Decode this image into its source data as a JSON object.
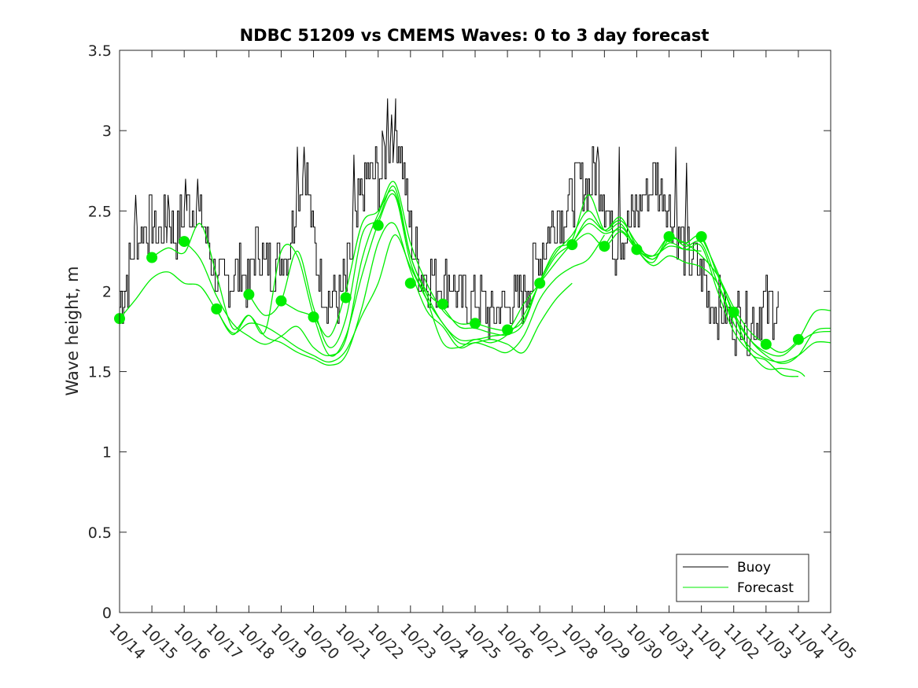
{
  "chart_data": {
    "type": "line",
    "title": "NDBC 51209 vs CMEMS Waves: 0 to 3 day forecast",
    "xlabel": "",
    "ylabel": "Wave height, m",
    "ylim": [
      0,
      3.5
    ],
    "yticks": [
      0,
      0.5,
      1,
      1.5,
      2,
      2.5,
      3,
      3.5
    ],
    "yticklabels": [
      "0",
      "0.5",
      "1",
      "1.5",
      "2",
      "2.5",
      "3",
      "3.5"
    ],
    "xlim_days": [
      0,
      22
    ],
    "xticklabels": [
      "10/14",
      "10/15",
      "10/16",
      "10/17",
      "10/18",
      "10/19",
      "10/20",
      "10/21",
      "10/22",
      "10/23",
      "10/24",
      "10/25",
      "10/26",
      "10/27",
      "10/28",
      "10/29",
      "10/30",
      "10/31",
      "11/01",
      "11/02",
      "11/03",
      "11/04",
      "11/05"
    ],
    "legend": {
      "position": "bottom-right",
      "entries": [
        "Buoy",
        "Forecast"
      ]
    },
    "colors": {
      "buoy": "#000000",
      "forecast": "#00ee00",
      "axis": "#262626"
    },
    "buoy_anchors": [
      [
        0,
        1.9
      ],
      [
        0.25,
        2.1
      ],
      [
        0.5,
        2.3
      ],
      [
        0.75,
        2.4
      ],
      [
        1,
        2.4
      ],
      [
        1.25,
        2.35
      ],
      [
        1.5,
        2.45
      ],
      [
        1.75,
        2.35
      ],
      [
        2,
        2.5
      ],
      [
        2.25,
        2.55
      ],
      [
        2.5,
        2.45
      ],
      [
        2.75,
        2.3
      ],
      [
        3,
        2.05
      ],
      [
        3.25,
        2.05
      ],
      [
        3.5,
        2.1
      ],
      [
        3.75,
        2.15
      ],
      [
        4,
        2.05
      ],
      [
        4.25,
        2.3
      ],
      [
        4.5,
        2.15
      ],
      [
        4.75,
        2.15
      ],
      [
        5,
        2.2
      ],
      [
        5.25,
        2.3
      ],
      [
        5.5,
        2.6
      ],
      [
        5.75,
        2.8
      ],
      [
        6,
        2.3
      ],
      [
        6.25,
        2.05
      ],
      [
        6.5,
        1.95
      ],
      [
        6.75,
        1.95
      ],
      [
        7,
        2.05
      ],
      [
        7.25,
        2.35
      ],
      [
        7.5,
        2.6
      ],
      [
        7.75,
        2.75
      ],
      [
        8,
        2.7
      ],
      [
        8.25,
        2.85
      ],
      [
        8.5,
        3.0
      ],
      [
        8.75,
        2.8
      ],
      [
        9,
        2.35
      ],
      [
        9.25,
        2.15
      ],
      [
        9.5,
        2.1
      ],
      [
        9.75,
        2.05
      ],
      [
        10,
        2.05
      ],
      [
        10.25,
        2.1
      ],
      [
        10.5,
        1.95
      ],
      [
        10.75,
        1.95
      ],
      [
        11,
        1.95
      ],
      [
        11.25,
        1.9
      ],
      [
        11.5,
        1.85
      ],
      [
        11.75,
        1.9
      ],
      [
        12,
        1.9
      ],
      [
        12.25,
        1.95
      ],
      [
        12.5,
        2.0
      ],
      [
        12.75,
        2.1
      ],
      [
        13,
        2.25
      ],
      [
        13.25,
        2.35
      ],
      [
        13.5,
        2.45
      ],
      [
        13.75,
        2.5
      ],
      [
        14,
        2.6
      ],
      [
        14.25,
        2.7
      ],
      [
        14.5,
        2.65
      ],
      [
        14.75,
        2.75
      ],
      [
        15,
        2.6
      ],
      [
        15.25,
        2.3
      ],
      [
        15.5,
        2.3
      ],
      [
        15.75,
        2.4
      ],
      [
        16,
        2.5
      ],
      [
        16.25,
        2.6
      ],
      [
        16.5,
        2.7
      ],
      [
        16.75,
        2.65
      ],
      [
        17,
        2.5
      ],
      [
        17.25,
        2.35
      ],
      [
        17.5,
        2.25
      ],
      [
        17.75,
        2.2
      ],
      [
        18,
        2.1
      ],
      [
        18.25,
        1.95
      ],
      [
        18.5,
        1.9
      ],
      [
        18.75,
        1.85
      ],
      [
        19,
        1.8
      ],
      [
        19.25,
        1.85
      ],
      [
        19.5,
        1.8
      ],
      [
        19.75,
        1.85
      ],
      [
        20,
        1.9
      ]
    ],
    "buoy_peaks": [
      [
        0.5,
        2.6
      ],
      [
        1.5,
        2.6
      ],
      [
        2.05,
        2.7
      ],
      [
        2.4,
        2.7
      ],
      [
        5.5,
        2.9
      ],
      [
        5.7,
        2.9
      ],
      [
        7.25,
        2.85
      ],
      [
        8.15,
        2.95
      ],
      [
        8.3,
        3.2
      ],
      [
        8.4,
        3.1
      ],
      [
        8.5,
        2.95
      ],
      [
        14.8,
        2.9
      ],
      [
        15.45,
        2.9
      ],
      [
        17.2,
        2.9
      ],
      [
        17.55,
        2.8
      ]
    ],
    "buoy_end_day": 20.4,
    "forecast_points": [
      [
        0,
        1.83
      ],
      [
        1,
        2.21
      ],
      [
        2,
        2.31
      ],
      [
        3,
        1.89
      ],
      [
        4,
        1.98
      ],
      [
        5,
        1.94
      ],
      [
        6,
        1.84
      ],
      [
        7,
        1.96
      ],
      [
        8,
        2.41
      ],
      [
        9,
        2.05
      ],
      [
        10,
        1.92
      ],
      [
        11,
        1.8
      ],
      [
        12,
        1.76
      ],
      [
        13,
        2.05
      ],
      [
        14,
        2.29
      ],
      [
        15,
        2.28
      ],
      [
        16,
        2.26
      ],
      [
        17,
        2.34
      ],
      [
        18,
        2.34
      ],
      [
        19,
        1.87
      ],
      [
        20,
        1.67
      ],
      [
        21,
        1.7
      ]
    ],
    "forecast_series": [
      [
        [
          0,
          1.83
        ],
        [
          0.5,
          1.95
        ],
        [
          1,
          2.08
        ],
        [
          1.5,
          2.12
        ],
        [
          2,
          2.05
        ],
        [
          2.5,
          2.03
        ],
        [
          3,
          1.88
        ],
        [
          3.5,
          1.74
        ],
        [
          4,
          1.8
        ],
        [
          4.5,
          1.78
        ],
        [
          5,
          1.72
        ],
        [
          5.5,
          1.65
        ],
        [
          6,
          1.6
        ],
        [
          6.5,
          1.56
        ],
        [
          7,
          1.63
        ],
        [
          7.5,
          1.85
        ],
        [
          8,
          2.05
        ],
        [
          8.5,
          2.35
        ],
        [
          9,
          2.15
        ],
        [
          9.5,
          1.95
        ],
        [
          10,
          1.8
        ],
        [
          10.5,
          1.68
        ],
        [
          11,
          1.68
        ],
        [
          11.5,
          1.7
        ],
        [
          12,
          1.67
        ],
        [
          12.5,
          1.62
        ],
        [
          13,
          1.8
        ],
        [
          13.5,
          1.95
        ],
        [
          14,
          2.05
        ]
      ],
      [
        [
          1,
          2.21
        ],
        [
          1.5,
          2.27
        ],
        [
          2,
          2.24
        ],
        [
          2.5,
          2.42
        ],
        [
          3,
          2.1
        ],
        [
          3.5,
          1.77
        ],
        [
          4,
          1.85
        ],
        [
          4.5,
          1.72
        ],
        [
          5,
          1.68
        ],
        [
          5.5,
          1.62
        ],
        [
          6,
          1.58
        ],
        [
          6.5,
          1.54
        ],
        [
          7,
          1.6
        ],
        [
          7.5,
          1.9
        ],
        [
          8,
          2.3
        ],
        [
          8.5,
          2.42
        ],
        [
          9,
          2.13
        ],
        [
          9.5,
          1.88
        ],
        [
          10,
          1.78
        ],
        [
          10.5,
          1.65
        ],
        [
          11,
          1.68
        ],
        [
          11.5,
          1.65
        ],
        [
          12,
          1.62
        ],
        [
          12.5,
          1.72
        ],
        [
          13,
          1.95
        ],
        [
          13.5,
          2.08
        ],
        [
          14,
          2.15
        ],
        [
          14.5,
          2.2
        ],
        [
          15,
          2.35
        ]
      ],
      [
        [
          2,
          2.31
        ],
        [
          2.5,
          2.2
        ],
        [
          3,
          1.97
        ],
        [
          3.5,
          1.8
        ],
        [
          4,
          1.72
        ],
        [
          4.5,
          1.67
        ],
        [
          5,
          1.72
        ],
        [
          5.5,
          1.78
        ],
        [
          6,
          1.65
        ],
        [
          6.5,
          1.6
        ],
        [
          7,
          1.7
        ],
        [
          7.5,
          2.2
        ],
        [
          8,
          2.48
        ],
        [
          8.5,
          2.62
        ],
        [
          9,
          2.22
        ],
        [
          9.5,
          1.98
        ],
        [
          10,
          1.8
        ],
        [
          10.5,
          1.7
        ],
        [
          11,
          1.7
        ],
        [
          11.5,
          1.72
        ],
        [
          12,
          1.75
        ],
        [
          12.5,
          1.92
        ],
        [
          13,
          2.05
        ],
        [
          13.5,
          2.18
        ],
        [
          14,
          2.3
        ],
        [
          14.5,
          2.42
        ],
        [
          15,
          2.36
        ],
        [
          15.5,
          2.38
        ],
        [
          16,
          2.28
        ]
      ],
      [
        [
          3,
          1.89
        ],
        [
          3.5,
          1.73
        ],
        [
          4,
          1.85
        ],
        [
          4.5,
          1.75
        ],
        [
          5,
          2.25
        ],
        [
          5.5,
          2.22
        ],
        [
          6,
          1.85
        ],
        [
          6.5,
          1.6
        ],
        [
          7,
          1.72
        ],
        [
          7.5,
          2.1
        ],
        [
          8,
          2.42
        ],
        [
          8.5,
          2.6
        ],
        [
          9,
          2.18
        ],
        [
          9.5,
          1.95
        ],
        [
          10,
          1.68
        ],
        [
          10.5,
          1.65
        ],
        [
          11,
          1.7
        ],
        [
          11.5,
          1.68
        ],
        [
          12,
          1.73
        ],
        [
          12.5,
          1.85
        ],
        [
          13,
          2.05
        ],
        [
          13.5,
          2.22
        ],
        [
          14,
          2.3
        ],
        [
          14.5,
          2.45
        ],
        [
          15,
          2.38
        ],
        [
          15.5,
          2.44
        ],
        [
          16,
          2.3
        ],
        [
          16.5,
          2.2
        ],
        [
          17,
          2.33
        ]
      ],
      [
        [
          4,
          1.98
        ],
        [
          4.5,
          1.85
        ],
        [
          5,
          1.94
        ],
        [
          5.5,
          2.25
        ],
        [
          6,
          1.9
        ],
        [
          6.5,
          1.65
        ],
        [
          7,
          1.83
        ],
        [
          7.5,
          2.35
        ],
        [
          8,
          2.45
        ],
        [
          8.5,
          2.65
        ],
        [
          9,
          2.22
        ],
        [
          9.5,
          2.0
        ],
        [
          10,
          1.9
        ],
        [
          10.5,
          1.78
        ],
        [
          11,
          1.77
        ],
        [
          11.5,
          1.74
        ],
        [
          12,
          1.73
        ],
        [
          12.5,
          1.8
        ],
        [
          13,
          2.06
        ],
        [
          13.5,
          2.24
        ],
        [
          14,
          2.35
        ],
        [
          14.5,
          2.5
        ],
        [
          15,
          2.38
        ],
        [
          15.5,
          2.46
        ],
        [
          16,
          2.28
        ],
        [
          16.5,
          2.22
        ],
        [
          17,
          2.28
        ],
        [
          17.5,
          2.26
        ],
        [
          18,
          2.25
        ]
      ],
      [
        [
          5,
          1.94
        ],
        [
          5.5,
          1.88
        ],
        [
          6,
          1.84
        ],
        [
          6.5,
          1.72
        ],
        [
          7,
          2.0
        ],
        [
          7.5,
          2.42
        ],
        [
          8,
          2.5
        ],
        [
          8.5,
          2.68
        ],
        [
          9,
          2.3
        ],
        [
          9.5,
          2.05
        ],
        [
          10,
          1.88
        ],
        [
          10.5,
          1.8
        ],
        [
          11,
          1.8
        ],
        [
          11.5,
          1.77
        ],
        [
          12,
          1.76
        ],
        [
          12.5,
          1.82
        ],
        [
          13,
          2.06
        ],
        [
          13.5,
          2.26
        ],
        [
          14,
          2.32
        ],
        [
          14.5,
          2.6
        ],
        [
          15,
          2.38
        ],
        [
          15.5,
          2.42
        ],
        [
          16,
          2.26
        ],
        [
          16.5,
          2.16
        ],
        [
          17,
          2.22
        ],
        [
          17.5,
          2.18
        ],
        [
          18,
          2.15
        ],
        [
          18.5,
          2.05
        ],
        [
          19,
          1.8
        ]
      ],
      [
        [
          14,
          2.29
        ],
        [
          14.5,
          2.36
        ],
        [
          15,
          2.28
        ],
        [
          15.5,
          2.37
        ],
        [
          16,
          2.26
        ],
        [
          16.5,
          2.22
        ],
        [
          17,
          2.34
        ],
        [
          17.5,
          2.3
        ],
        [
          18,
          2.34
        ],
        [
          18.5,
          2.1
        ],
        [
          19,
          1.87
        ],
        [
          19.5,
          1.7
        ],
        [
          20,
          1.6
        ],
        [
          20.5,
          1.55
        ],
        [
          21,
          1.6
        ],
        [
          21.5,
          1.75
        ],
        [
          22,
          1.77
        ]
      ],
      [
        [
          15,
          2.28
        ],
        [
          15.5,
          2.4
        ],
        [
          16,
          2.26
        ],
        [
          16.5,
          2.18
        ],
        [
          17,
          2.34
        ],
        [
          17.5,
          2.28
        ],
        [
          18,
          2.3
        ],
        [
          18.5,
          2.05
        ],
        [
          19,
          1.8
        ],
        [
          19.5,
          1.65
        ],
        [
          20,
          1.58
        ],
        [
          20.5,
          1.56
        ],
        [
          21,
          1.6
        ],
        [
          21.5,
          1.68
        ],
        [
          22,
          1.68
        ]
      ],
      [
        [
          16,
          2.26
        ],
        [
          16.5,
          2.2
        ],
        [
          17,
          2.3
        ],
        [
          17.5,
          2.26
        ],
        [
          18,
          2.28
        ],
        [
          18.5,
          2.0
        ],
        [
          19,
          1.75
        ],
        [
          19.5,
          1.62
        ],
        [
          20,
          1.52
        ],
        [
          20.5,
          1.52
        ],
        [
          21,
          1.5
        ],
        [
          21.2,
          1.47
        ]
      ],
      [
        [
          17,
          2.34
        ],
        [
          17.5,
          2.3
        ],
        [
          18,
          2.22
        ],
        [
          18.5,
          2.1
        ],
        [
          19,
          1.9
        ],
        [
          19.5,
          1.75
        ],
        [
          20,
          1.67
        ],
        [
          20.5,
          1.62
        ],
        [
          21,
          1.7
        ],
        [
          21.5,
          1.87
        ],
        [
          22,
          1.88
        ]
      ],
      [
        [
          18,
          2.34
        ],
        [
          18.5,
          2.12
        ],
        [
          19,
          1.85
        ],
        [
          19.5,
          1.7
        ],
        [
          20,
          1.62
        ],
        [
          20.5,
          1.6
        ],
        [
          21,
          1.68
        ],
        [
          21.5,
          1.74
        ],
        [
          22,
          1.75
        ]
      ],
      [
        [
          19,
          1.87
        ],
        [
          19.5,
          1.62
        ],
        [
          20,
          1.57
        ],
        [
          20.5,
          1.48
        ],
        [
          21,
          1.47
        ]
      ]
    ]
  }
}
